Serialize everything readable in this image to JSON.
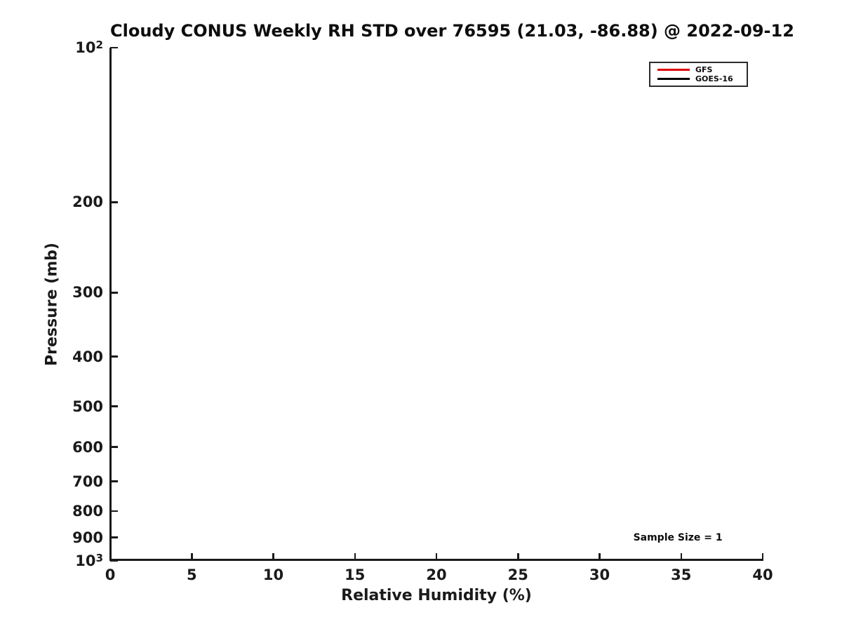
{
  "page": {
    "background": "#ffffff"
  },
  "chart_data": {
    "type": "line",
    "title": "Cloudy CONUS Weekly RH STD over 76595 (21.03, -86.88) @ 2022-09-12",
    "xlabel": "Relative Humidity (%)",
    "ylabel": "Pressure (mb)",
    "xlim": [
      0,
      40
    ],
    "x_ticks": [
      0,
      5,
      10,
      15,
      20,
      25,
      30,
      35,
      40
    ],
    "yscale": "log",
    "y_axis_inverted": true,
    "ylim": [
      100,
      1000
    ],
    "y_ticks": [
      {
        "value": 100,
        "base": "10",
        "sup": "2"
      },
      {
        "value": 200,
        "label": "200"
      },
      {
        "value": 300,
        "label": "300"
      },
      {
        "value": 400,
        "label": "400"
      },
      {
        "value": 500,
        "label": "500"
      },
      {
        "value": 600,
        "label": "600"
      },
      {
        "value": 700,
        "label": "700"
      },
      {
        "value": 800,
        "label": "800"
      },
      {
        "value": 900,
        "label": "900"
      },
      {
        "value": 1000,
        "base": "10",
        "sup": "3"
      }
    ],
    "grid": false,
    "legend_position": "upper right",
    "series": [
      {
        "name": "GFS",
        "color": "#e00000",
        "x": [],
        "y": []
      },
      {
        "name": "GOES-16",
        "color": "#000000",
        "x": [],
        "y": []
      }
    ],
    "annotations": [
      {
        "text": "Sample Size = 1",
        "x": 34.8,
        "y": 900
      }
    ],
    "axis_color": "#1a1a1a",
    "note": "no data curves are visible in the plot area"
  }
}
